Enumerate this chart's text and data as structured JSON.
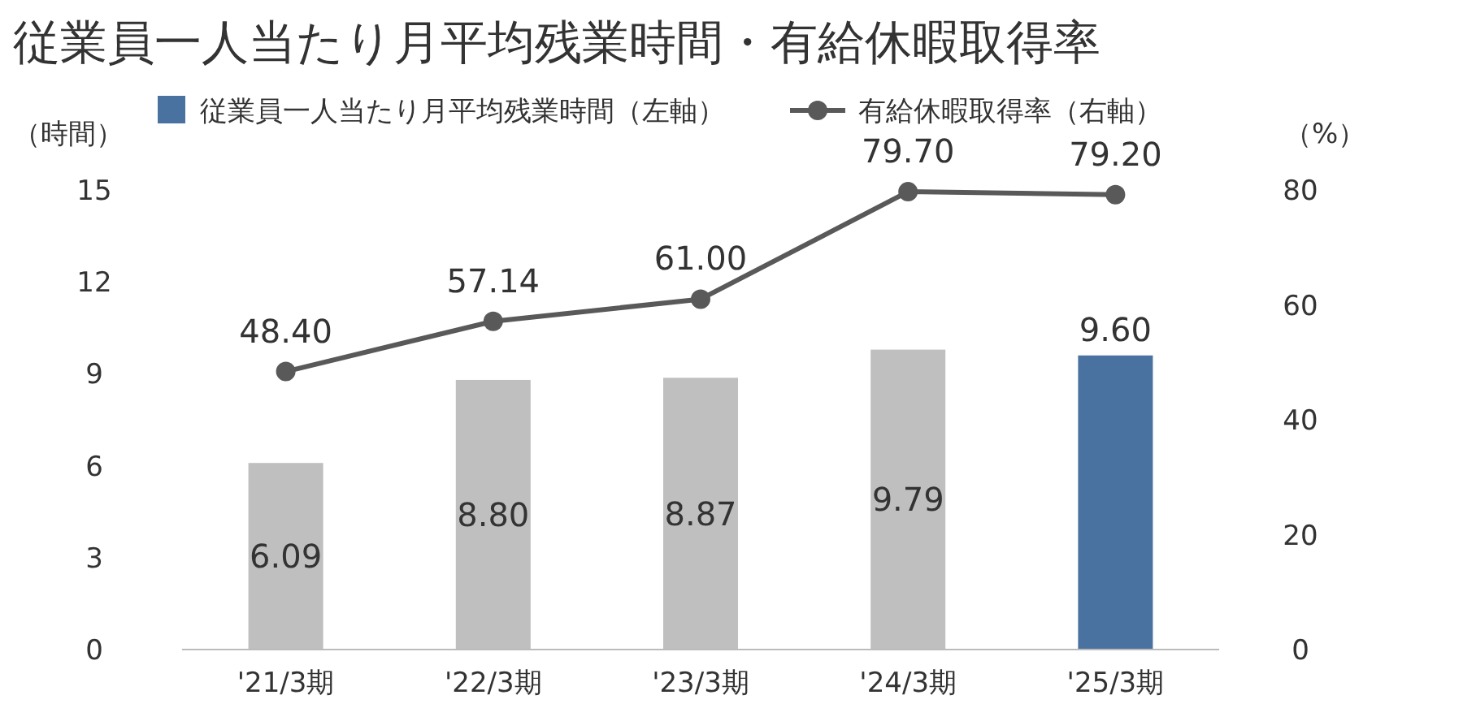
{
  "chart_data": {
    "type": "bar",
    "title": "従業員一人当たり月平均残業時間・有給休暇取得率",
    "ylabel": "（時間）",
    "y2label": "（%）",
    "categories": [
      "'21/3期",
      "'22/3期",
      "'23/3期",
      "'24/3期",
      "'25/3期"
    ],
    "series": [
      {
        "name": "従業員一人当たり月平均残業時間（左軸）",
        "type": "bar",
        "color": "#4a72a0",
        "colors": [
          "#bfbfbf",
          "#bfbfbf",
          "#bfbfbf",
          "#bfbfbf",
          "#4a72a0"
        ],
        "values": [
          6.09,
          8.8,
          8.87,
          9.79,
          9.6
        ],
        "value_labels": [
          "6.09",
          "8.80",
          "8.87",
          "9.79",
          "9.60"
        ]
      },
      {
        "name": "有給休暇取得率（右軸）",
        "type": "line",
        "axis": "y2",
        "color": "#595959",
        "marker": "circle",
        "values": [
          48.4,
          57.14,
          61.0,
          79.7,
          79.2
        ],
        "value_labels": [
          "48.40",
          "57.14",
          "61.00",
          "79.70",
          "79.20"
        ]
      }
    ],
    "ylim": [
      0,
      15
    ],
    "yticks": [
      0,
      3,
      6,
      9,
      12,
      15
    ],
    "y2lim": [
      0,
      80
    ],
    "y2ticks": [
      0,
      20,
      40,
      60,
      80
    ],
    "grid": false,
    "legend": "top"
  }
}
